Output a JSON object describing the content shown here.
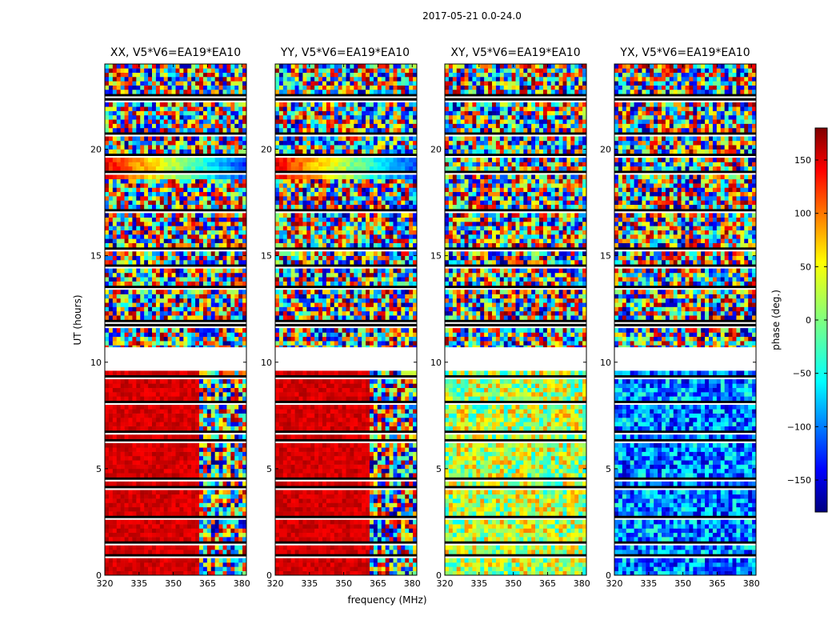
{
  "chart_data": {
    "type": "heatmap",
    "suptitle": "2017-05-21 0.0-24.0",
    "xlabel": "frequency (MHz)",
    "ylabel": "UT (hours)",
    "xlim": [
      320,
      382
    ],
    "ylim": [
      0,
      24
    ],
    "x_ticks": [
      "320",
      "335",
      "350",
      "365",
      "380"
    ],
    "y_ticks": [
      "0",
      "5",
      "10",
      "15",
      "20"
    ],
    "x_tick_values": [
      320,
      335,
      350,
      365,
      380
    ],
    "y_tick_values": [
      0,
      5,
      10,
      15,
      20
    ],
    "colorbar": {
      "label": "phase (deg.)",
      "range": [
        -180,
        180
      ],
      "colormap": "jet",
      "ticks": [
        "150",
        "100",
        "50",
        "0",
        "−50",
        "−100",
        "−150"
      ],
      "tick_values": [
        150,
        100,
        50,
        0,
        -50,
        -100,
        -150
      ]
    },
    "panels": [
      {
        "title": "XX, V5*V6=EA19*EA10",
        "low_ut_phase": 150,
        "high_ut_phase": "noisy"
      },
      {
        "title": "YY, V5*V6=EA19*EA10",
        "low_ut_phase": 150,
        "high_ut_phase": "noisy"
      },
      {
        "title": "XY, V5*V6=EA19*EA10",
        "low_ut_phase": 20,
        "high_ut_phase": "noisy"
      },
      {
        "title": "YX, V5*V6=EA19*EA10",
        "low_ut_phase": -90,
        "high_ut_phase": "noisy"
      }
    ],
    "gaps_ut": [
      [
        9.7,
        10.7
      ]
    ]
  }
}
